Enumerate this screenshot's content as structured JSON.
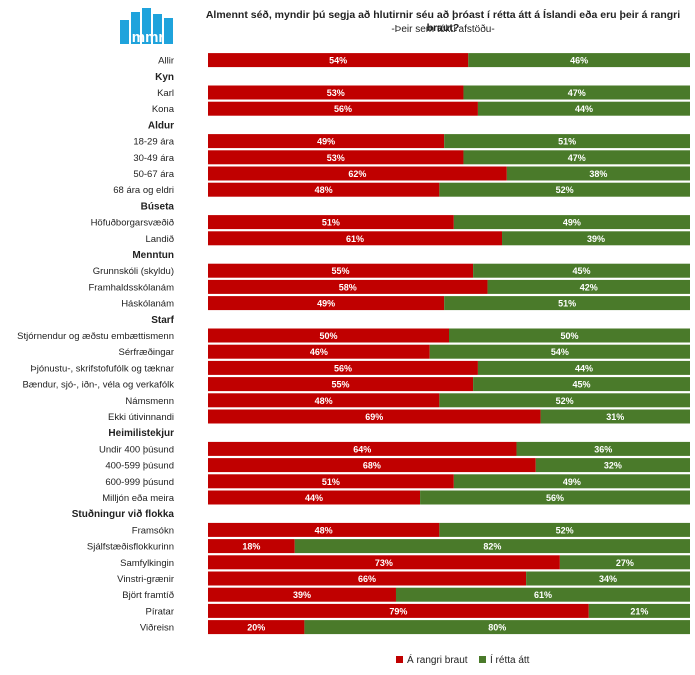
{
  "header": {
    "title": "Almennt séð, myndir þú segja að hlutirnir séu að þróast í rétta átt á Íslandi eða eru þeir á rangri braut?",
    "subtitle": "-Þeir sem tóku afstöðu-",
    "logo_text": "mmr"
  },
  "colors": {
    "rangri": "#c00000",
    "retta": "#4a7a2a",
    "logo": "#1fa3dc"
  },
  "chart_data": {
    "type": "bar",
    "orientation": "horizontal",
    "stacked": true,
    "percent": true,
    "xlim": [
      0,
      100
    ],
    "categories": [
      "Allir",
      "Kyn",
      "Karl",
      "Kona",
      "Aldur",
      "18-29 ára",
      "30-49 ára",
      "50-67 ára",
      "68 ára og eldri",
      "Búseta",
      "Höfuðborgarsvæðið",
      "Landið",
      "Menntun",
      "Grunnskóli (skyldu)",
      "Framhaldsskólanám",
      "Háskólanám",
      "Starf",
      "Stjórnendur og æðstu embættismenn",
      "Sérfræðingar",
      "Þjónustu-, skrifstofufólk og tæknar",
      "Bændur, sjó-, iðn-, véla og verkafólk",
      "Námsmenn",
      "Ekki útivinnandi",
      "Heimilistekjur",
      "Undir 400 þúsund",
      "400-599 þúsund",
      "600-999 þúsund",
      "Milljón eða meira",
      "Stuðningur við flokka",
      "Framsókn",
      "Sjálfstæðisflokkurinn",
      "Samfylkingin",
      "Vinstri-grænir",
      "Björt framtíð",
      "Píratar",
      "Viðreisn"
    ],
    "group_headers": [
      "Kyn",
      "Aldur",
      "Búseta",
      "Menntun",
      "Starf",
      "Heimilistekjur",
      "Stuðningur við flokka"
    ],
    "series": [
      {
        "name": "Á rangri braut",
        "color": "#c00000",
        "values": [
          54,
          null,
          53,
          56,
          null,
          49,
          53,
          62,
          48,
          null,
          51,
          61,
          null,
          55,
          58,
          49,
          null,
          50,
          46,
          56,
          55,
          48,
          69,
          null,
          64,
          68,
          51,
          44,
          null,
          48,
          18,
          73,
          66,
          39,
          79,
          20
        ]
      },
      {
        "name": "Í rétta átt",
        "color": "#4a7a2a",
        "values": [
          46,
          null,
          47,
          44,
          null,
          51,
          47,
          38,
          52,
          null,
          49,
          39,
          null,
          45,
          42,
          51,
          null,
          50,
          54,
          44,
          45,
          52,
          31,
          null,
          36,
          32,
          49,
          56,
          null,
          52,
          82,
          27,
          34,
          61,
          21,
          80
        ]
      }
    ],
    "legend": {
      "position": "bottom-right"
    }
  }
}
